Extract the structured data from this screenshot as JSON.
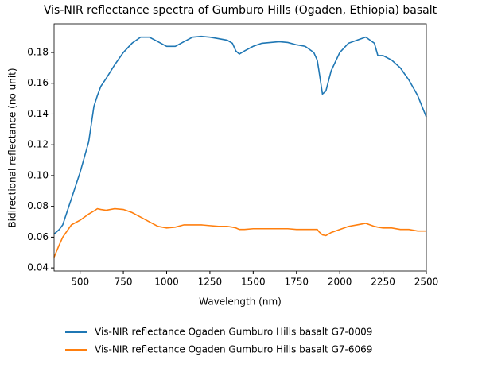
{
  "chart_data": {
    "type": "line",
    "title": "Vis-NIR reflectance spectra of Gumburo Hills (Ogaden, Ethiopia) basalt",
    "x_label": "Wavelength (nm)",
    "y_label": "Bidirectional reflectance (no unit)",
    "x": [
      350,
      380,
      400,
      450,
      500,
      550,
      580,
      600,
      620,
      650,
      700,
      750,
      800,
      850,
      900,
      950,
      1000,
      1050,
      1100,
      1150,
      1200,
      1250,
      1300,
      1350,
      1380,
      1400,
      1420,
      1450,
      1500,
      1550,
      1600,
      1650,
      1700,
      1750,
      1800,
      1850,
      1870,
      1880,
      1900,
      1920,
      1950,
      2000,
      2050,
      2100,
      2150,
      2200,
      2220,
      2250,
      2300,
      2350,
      2400,
      2450,
      2500
    ],
    "series": [
      {
        "name": "Vis-NIR reflectance Ogaden Gumburo Hills basalt G7-0009",
        "color": "#1f77b4",
        "values": [
          0.062,
          0.065,
          0.068,
          0.085,
          0.102,
          0.122,
          0.145,
          0.152,
          0.158,
          0.163,
          0.172,
          0.18,
          0.186,
          0.19,
          0.19,
          0.187,
          0.184,
          0.184,
          0.187,
          0.19,
          0.1905,
          0.19,
          0.189,
          0.188,
          0.186,
          0.181,
          0.179,
          0.181,
          0.184,
          0.186,
          0.1865,
          0.187,
          0.1865,
          0.185,
          0.184,
          0.18,
          0.175,
          0.168,
          0.153,
          0.155,
          0.168,
          0.18,
          0.186,
          0.188,
          0.19,
          0.186,
          0.178,
          0.178,
          0.175,
          0.17,
          0.162,
          0.152,
          0.138
        ]
      },
      {
        "name": "Vis-NIR reflectance Ogaden Gumburo Hills basalt G7-6069",
        "color": "#ff7f0e",
        "values": [
          0.047,
          0.055,
          0.06,
          0.068,
          0.071,
          0.075,
          0.077,
          0.0785,
          0.078,
          0.0775,
          0.0785,
          0.078,
          0.076,
          0.073,
          0.07,
          0.067,
          0.066,
          0.0665,
          0.068,
          0.068,
          0.068,
          0.0675,
          0.067,
          0.067,
          0.0665,
          0.066,
          0.065,
          0.065,
          0.0655,
          0.0655,
          0.0655,
          0.0655,
          0.0655,
          0.065,
          0.065,
          0.065,
          0.065,
          0.0635,
          0.0615,
          0.061,
          0.063,
          0.065,
          0.067,
          0.068,
          0.069,
          0.067,
          0.0665,
          0.066,
          0.066,
          0.065,
          0.065,
          0.064,
          0.064
        ]
      }
    ],
    "xlim": [
      350,
      2500
    ],
    "ylim": [
      0.038,
      0.1986
    ],
    "xticks": [
      500,
      750,
      1000,
      1250,
      1500,
      1750,
      2000,
      2250,
      2500
    ],
    "yticks": [
      0.04,
      0.06,
      0.08,
      {
        "value": 0.1,
        "label": "0.10"
      },
      0.12,
      0.14,
      0.16,
      0.18
    ],
    "grid": false,
    "legend": "bottom"
  }
}
